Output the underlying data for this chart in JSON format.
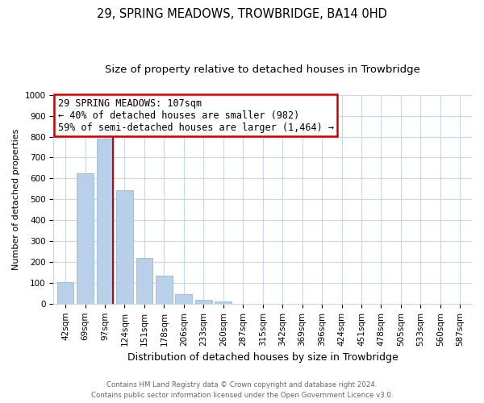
{
  "title": "29, SPRING MEADOWS, TROWBRIDGE, BA14 0HD",
  "subtitle": "Size of property relative to detached houses in Trowbridge",
  "xlabel": "Distribution of detached houses by size in Trowbridge",
  "ylabel": "Number of detached properties",
  "bar_labels": [
    "42sqm",
    "69sqm",
    "97sqm",
    "124sqm",
    "151sqm",
    "178sqm",
    "206sqm",
    "233sqm",
    "260sqm",
    "287sqm",
    "315sqm",
    "342sqm",
    "369sqm",
    "396sqm",
    "424sqm",
    "451sqm",
    "478sqm",
    "505sqm",
    "533sqm",
    "560sqm",
    "587sqm"
  ],
  "bar_values": [
    105,
    623,
    790,
    543,
    220,
    133,
    45,
    18,
    10,
    0,
    0,
    0,
    0,
    0,
    0,
    0,
    0,
    0,
    0,
    0,
    0
  ],
  "bar_color": "#b8d0e8",
  "bar_edge_color": "#9ab8d8",
  "ylim": [
    0,
    1000
  ],
  "yticks": [
    0,
    100,
    200,
    300,
    400,
    500,
    600,
    700,
    800,
    900,
    1000
  ],
  "property_line_x": 2.425,
  "property_line_color": "#cc0000",
  "annotation_title": "29 SPRING MEADOWS: 107sqm",
  "annotation_line1": "← 40% of detached houses are smaller (982)",
  "annotation_line2": "59% of semi-detached houses are larger (1,464) →",
  "footer_line1": "Contains HM Land Registry data © Crown copyright and database right 2024.",
  "footer_line2": "Contains public sector information licensed under the Open Government Licence v3.0.",
  "background_color": "#ffffff",
  "grid_color": "#c8d8ec",
  "title_fontsize": 10.5,
  "subtitle_fontsize": 9.5,
  "annotation_fontsize": 8.5,
  "ylabel_fontsize": 8,
  "xlabel_fontsize": 9,
  "tick_fontsize": 7.5
}
